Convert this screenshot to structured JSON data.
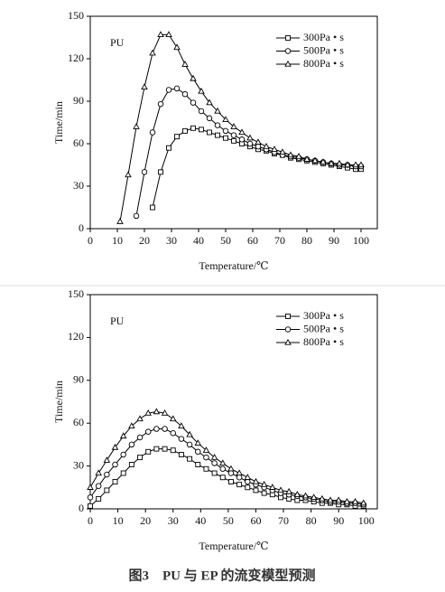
{
  "chart_data": [
    {
      "type": "line",
      "x_label": "Temperature/℃",
      "y_label": "Time/min",
      "annotation": "PU",
      "x": [
        11,
        14,
        17,
        20,
        23,
        26,
        29,
        32,
        35,
        38,
        41,
        44,
        47,
        50,
        53,
        56,
        59,
        62,
        65,
        68,
        71,
        74,
        77,
        80,
        83,
        86,
        89,
        92,
        95,
        98,
        100
      ],
      "series": [
        {
          "name": "300Pa • s",
          "color": "#000000",
          "marker": "square",
          "values": [
            null,
            null,
            null,
            null,
            15,
            40,
            57,
            65,
            69,
            71,
            70,
            68,
            66,
            64,
            62,
            60,
            58,
            56,
            55,
            53,
            52,
            50,
            49,
            48,
            47,
            46,
            45,
            44,
            43,
            42,
            42
          ]
        },
        {
          "name": "500Pa • s",
          "color": "#000000",
          "marker": "circle",
          "values": [
            null,
            null,
            9,
            40,
            68,
            88,
            98,
            99,
            95,
            89,
            83,
            78,
            73,
            69,
            66,
            63,
            60,
            58,
            56,
            54,
            52,
            51,
            50,
            49,
            48,
            47,
            46,
            45,
            45,
            44,
            44
          ]
        },
        {
          "name": "800Pa • s",
          "color": "#000000",
          "marker": "triangle",
          "values": [
            5,
            38,
            72,
            100,
            124,
            137,
            137,
            128,
            116,
            106,
            97,
            89,
            83,
            77,
            72,
            68,
            64,
            61,
            58,
            56,
            54,
            52,
            51,
            49,
            48,
            47,
            46,
            46,
            45,
            45,
            45
          ]
        }
      ],
      "xlim": [
        0,
        106
      ],
      "xticks": [
        0,
        10,
        20,
        30,
        40,
        50,
        60,
        70,
        80,
        90,
        100
      ],
      "ylim": [
        0,
        150
      ],
      "yticks": [
        0,
        30,
        60,
        90,
        120,
        150
      ],
      "grid": false,
      "legend": "top-right"
    },
    {
      "type": "line",
      "x_label": "Temperature/℃",
      "y_label": "Time/min",
      "annotation": "PU",
      "x": [
        0,
        3,
        6,
        9,
        12,
        15,
        18,
        21,
        24,
        27,
        30,
        33,
        36,
        39,
        42,
        45,
        48,
        51,
        54,
        57,
        60,
        63,
        66,
        69,
        72,
        75,
        78,
        81,
        84,
        87,
        90,
        93,
        96,
        99
      ],
      "series": [
        {
          "name": "300Pa • s",
          "color": "#000000",
          "marker": "square",
          "values": [
            2,
            7,
            13,
            19,
            25,
            31,
            36,
            40,
            42,
            42,
            41,
            38,
            35,
            31,
            28,
            25,
            22,
            19,
            17,
            15,
            13,
            11,
            10,
            8,
            7,
            6,
            6,
            5,
            4,
            4,
            3,
            3,
            2,
            2
          ]
        },
        {
          "name": "500Pa • s",
          "color": "#000000",
          "marker": "circle",
          "values": [
            8,
            16,
            24,
            31,
            38,
            45,
            50,
            54,
            56,
            56,
            53,
            49,
            45,
            40,
            36,
            32,
            28,
            25,
            22,
            19,
            17,
            15,
            13,
            11,
            10,
            9,
            8,
            7,
            6,
            5,
            5,
            4,
            4,
            3
          ]
        },
        {
          "name": "800Pa • s",
          "color": "#000000",
          "marker": "triangle",
          "values": [
            15,
            25,
            34,
            43,
            51,
            58,
            63,
            67,
            68,
            67,
            63,
            58,
            52,
            46,
            41,
            36,
            32,
            28,
            25,
            22,
            19,
            17,
            15,
            13,
            12,
            10,
            9,
            8,
            7,
            6,
            6,
            5,
            5,
            4
          ]
        }
      ],
      "xlim": [
        0,
        104
      ],
      "xticks": [
        0,
        10,
        20,
        30,
        40,
        50,
        60,
        70,
        80,
        90,
        100
      ],
      "ylim": [
        0,
        150
      ],
      "yticks": [
        0,
        30,
        60,
        90,
        120,
        150
      ],
      "grid": false,
      "legend": "top-right"
    }
  ],
  "caption": "图3　PU 与 EP 的流变模型预测"
}
